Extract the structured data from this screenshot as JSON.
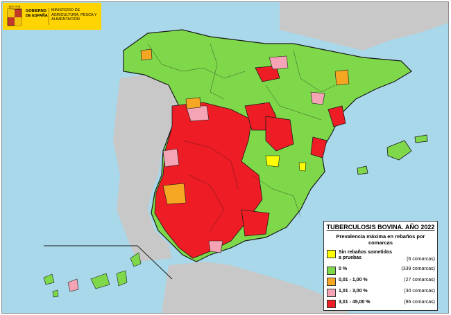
{
  "logo": {
    "government": "GOBIERNO DE ESPAÑA",
    "ministry": "MINISTERIO DE AGRICULTURA, PESCA Y ALIMENTACIÓN"
  },
  "legend": {
    "title": "TUBERCULOSIS BOVINA.  AÑO 2022",
    "subtitle": "Prevalencia máxima en rebaños por comarcas",
    "items": [
      {
        "label": "Sin rebaños sometidos a pruebas",
        "count": "(6 comarcas)",
        "color": "#ffff00"
      },
      {
        "label": "0 %",
        "count": "(339 comarcas)",
        "color": "#7ed84a"
      },
      {
        "label": "0,01 - 1,00 %",
        "count": "(27 comarcas)",
        "color": "#f5a623"
      },
      {
        "label": "1,01 - 3,00 %",
        "count": "(30 comarcas)",
        "color": "#f4a4b4"
      },
      {
        "label": "3,01 - 45,00 %",
        "count": "(86 comarcas)",
        "color": "#ee1c24"
      }
    ]
  },
  "colors": {
    "sea": "#a8d8ea",
    "foreign_land": "#c8c8c8",
    "green": "#7ed84a",
    "red": "#ee1c24",
    "pink": "#f4a4b4",
    "orange": "#f5a623",
    "yellow": "#ffff00"
  }
}
